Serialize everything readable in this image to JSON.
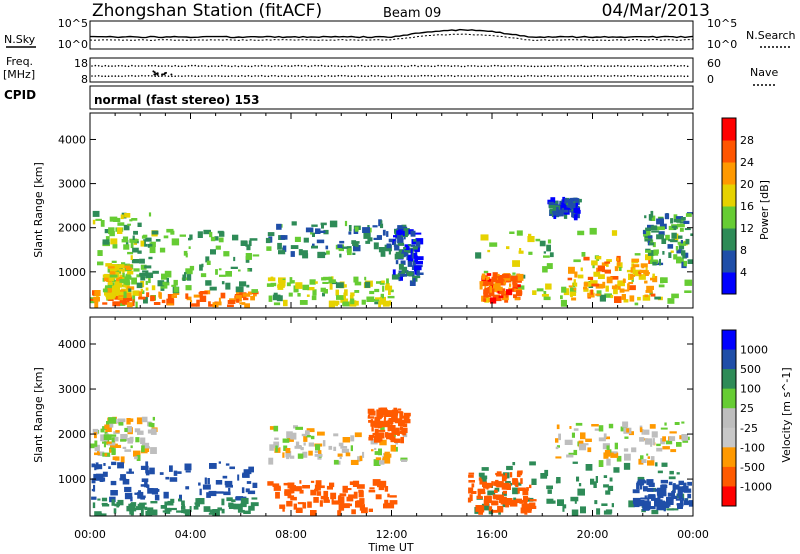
{
  "header": {
    "station": "Zhongshan Station (fitACF)",
    "beam": "Beam 09",
    "date": "04/Mar/2013"
  },
  "top_panels": {
    "nsky_label": "N.Sky",
    "nsky_ticks": [
      "10^5",
      "10^0"
    ],
    "nsearch_label": "N.Search",
    "nsearch_ticks": [
      "10^5",
      "10^0"
    ],
    "freq_label_1": "Freq.",
    "freq_label_2": "[MHz]",
    "freq_ticks": [
      "18",
      "8"
    ],
    "nave_label": "Nave",
    "nave_ticks": [
      "60",
      "0"
    ],
    "cpid_label": "CPID",
    "cpid_text": "normal (fast stereo) 153"
  },
  "colors": {
    "power": [
      "#0000ff",
      "#1f4ea8",
      "#2e8b57",
      "#66cc33",
      "#e6d200",
      "#ff9900",
      "#ff5500",
      "#ff0000"
    ],
    "velocity": [
      "#ff0000",
      "#ff5a00",
      "#ff9900",
      "#c8c8c8",
      "#bebebe",
      "#66cc33",
      "#2e8b57",
      "#1f4ea8",
      "#0000ff"
    ]
  },
  "chart_data": [
    {
      "type": "heatmap",
      "title": "",
      "ylabel": "Slant Range [km]",
      "xlabel": "",
      "xlim": [
        0,
        24
      ],
      "ylim": [
        180,
        4600
      ],
      "y_ticks": [
        1000,
        2000,
        3000,
        4000
      ],
      "x_ticks": [
        "00:00",
        "04:00",
        "08:00",
        "12:00",
        "16:00",
        "20:00",
        "00:00"
      ],
      "colorbar_label": "Power [dB]",
      "colorbar_range": [
        0,
        32
      ],
      "colorbar_ticks": [
        "4",
        "8",
        "12",
        "16",
        "20",
        "24",
        "28"
      ],
      "echo_regions": [
        {
          "t": [
            0,
            2.5
          ],
          "r": [
            200,
            2400
          ],
          "power_db": 14
        },
        {
          "t": [
            0,
            6.5
          ],
          "r": [
            200,
            600
          ],
          "power_db": 24
        },
        {
          "t": [
            0.5,
            1.5
          ],
          "r": [
            500,
            1200
          ],
          "power_db": 18
        },
        {
          "t": [
            1.5,
            6.5
          ],
          "r": [
            600,
            2000
          ],
          "power_db": 12
        },
        {
          "t": [
            7,
            12.5
          ],
          "r": [
            1400,
            2200
          ],
          "power_db": 9
        },
        {
          "t": [
            7,
            12
          ],
          "r": [
            300,
            900
          ],
          "power_db": 15
        },
        {
          "t": [
            12,
            13
          ],
          "r": [
            800,
            2000
          ],
          "power_db": 6
        },
        {
          "t": [
            15.3,
            24
          ],
          "r": [
            300,
            2000
          ],
          "power_db": 15
        },
        {
          "t": [
            15.5,
            17
          ],
          "r": [
            400,
            1000
          ],
          "power_db": 25
        },
        {
          "t": [
            19,
            22.5
          ],
          "r": [
            400,
            1400
          ],
          "power_db": 22
        },
        {
          "t": [
            18.2,
            19.3
          ],
          "r": [
            2300,
            2700
          ],
          "power_db": 6
        },
        {
          "t": [
            22,
            24
          ],
          "r": [
            1200,
            2400
          ],
          "power_db": 10
        }
      ]
    },
    {
      "type": "heatmap",
      "title": "",
      "ylabel": "Slant Range [km]",
      "xlabel": "Time UT",
      "xlim": [
        0,
        24
      ],
      "ylim": [
        180,
        4600
      ],
      "y_ticks": [
        1000,
        2000,
        3000,
        4000
      ],
      "x_ticks": [
        "00:00",
        "04:00",
        "08:00",
        "12:00",
        "16:00",
        "20:00",
        "00:00"
      ],
      "colorbar_label": "Velocity [m s^-1]",
      "colorbar_ticks": [
        "1000",
        "500",
        "100",
        "25",
        "-25",
        "-100",
        "-500",
        "-1000"
      ],
      "echo_regions": [
        {
          "t": [
            0,
            2.5
          ],
          "r": [
            1500,
            2400
          ],
          "velocity": 0
        },
        {
          "t": [
            0,
            6.5
          ],
          "r": [
            600,
            1400
          ],
          "velocity": 800
        },
        {
          "t": [
            0,
            6.5
          ],
          "r": [
            200,
            600
          ],
          "velocity": 200
        },
        {
          "t": [
            7,
            12.5
          ],
          "r": [
            1400,
            2200
          ],
          "velocity": 0
        },
        {
          "t": [
            7,
            12
          ],
          "r": [
            300,
            1000
          ],
          "velocity": -200
        },
        {
          "t": [
            11,
            12.5
          ],
          "r": [
            1900,
            2600
          ],
          "velocity": -300
        },
        {
          "t": [
            15.3,
            24
          ],
          "r": [
            300,
            1400
          ],
          "velocity": 200
        },
        {
          "t": [
            15,
            17.5
          ],
          "r": [
            300,
            1200
          ],
          "velocity": -300
        },
        {
          "t": [
            18.5,
            24
          ],
          "r": [
            1400,
            2300
          ],
          "velocity": 0
        },
        {
          "t": [
            21.5,
            24
          ],
          "r": [
            400,
            1000
          ],
          "velocity": 600
        }
      ]
    }
  ],
  "x_axis_label": "Time UT"
}
